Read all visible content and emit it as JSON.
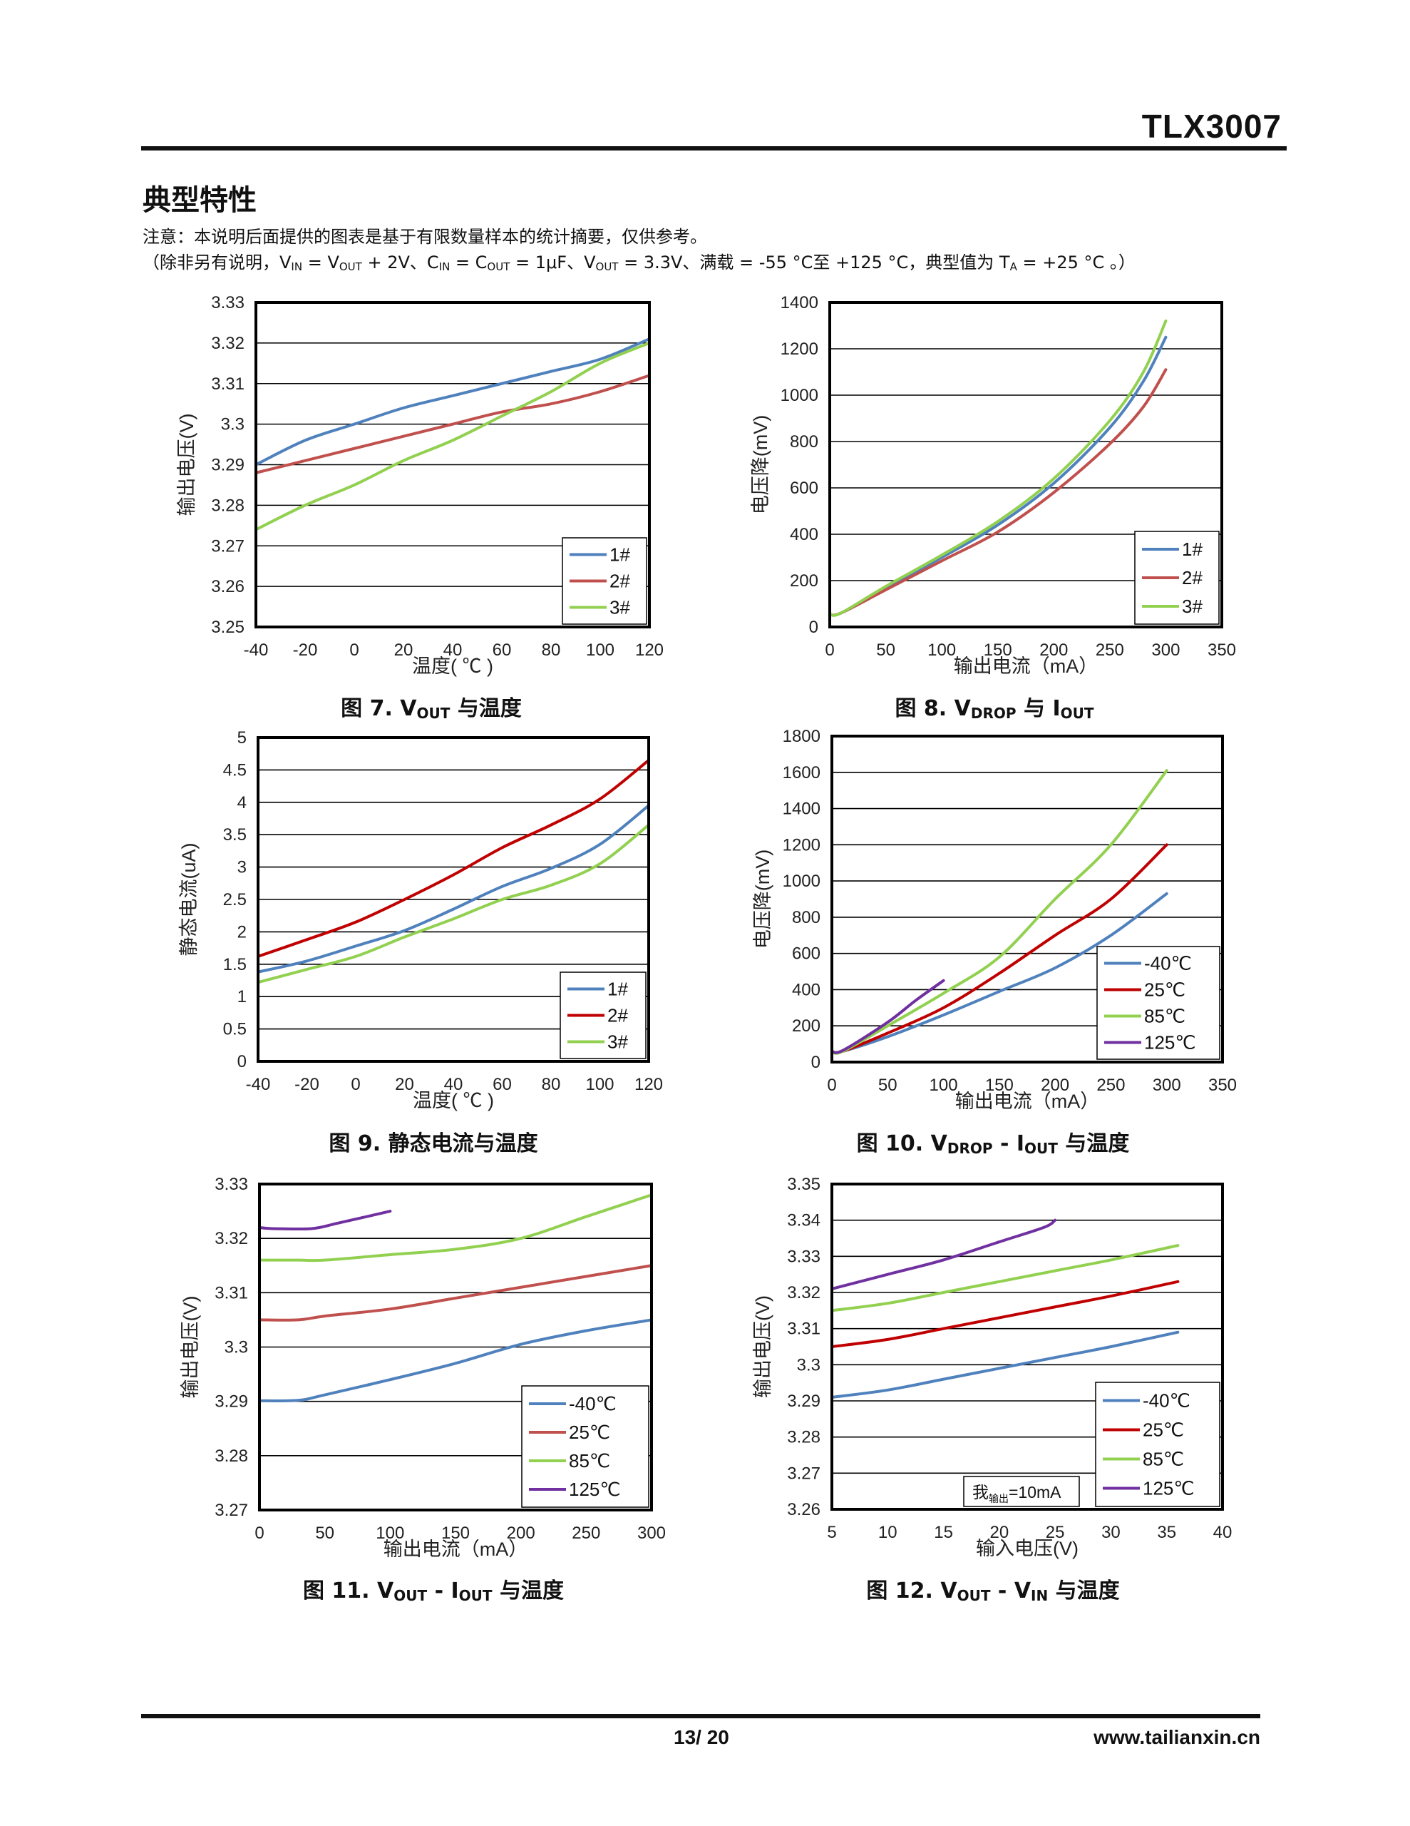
{
  "header": {
    "doc_title": "TLX3007"
  },
  "section": {
    "title": "典型特性",
    "note1": "注意：本说明后面提供的图表是基于有限数量样本的统计摘要，仅供参考。",
    "note2": {
      "p1": "（除非另有说明，V",
      "s1": "IN",
      "p2": " = V",
      "s2": "OUT",
      "p3": " + 2V、C",
      "s3": "IN",
      "p4": " = C",
      "s4": "OUT",
      "p5": " = 1μF、V",
      "s5": "OUT",
      "p6": " = 3.3V、满载 = -55 °C至 +125 °C，典型值为 T",
      "s6": "A",
      "p7": " = +25 °C 。）"
    }
  },
  "captions": {
    "fig7": {
      "pre": "图 7. V",
      "sub": "OUT",
      "post": " 与温度"
    },
    "fig8": {
      "pre": "图 8. V",
      "sub": "DROP",
      "mid": " 与 I",
      "sub2": "OUT",
      "post": ""
    },
    "fig9": {
      "pre": "图 9. 静态电流与温度"
    },
    "fig10": {
      "pre": "图 10. V",
      "sub": "DROP",
      "mid": " - I",
      "sub2": "OUT",
      "post": " 与温度"
    },
    "fig11": {
      "pre": "图 11. V",
      "sub": "OUT",
      "mid": " - I",
      "sub2": "OUT",
      "post": " 与温度"
    },
    "fig12": {
      "pre": "图 12. V",
      "sub": "OUT",
      "mid": " - V",
      "sub2": "IN",
      "post": " 与温度"
    }
  },
  "footer": {
    "page": "13/ 20",
    "website": "www.tailianxin.cn"
  },
  "colors": {
    "blue": "#4f81bd",
    "red": "#c0504d",
    "darkred": "#c00000",
    "green": "#92d050",
    "purple": "#7030a0"
  },
  "chart_data": [
    {
      "id": "fig7",
      "type": "line",
      "xlabel": "温度( ℃ )",
      "ylabel": "输出电压(V)",
      "xlim": [
        -40,
        120
      ],
      "ylim": [
        3.25,
        3.33
      ],
      "xticks": [
        "-40",
        "-20",
        "0",
        "20",
        "40",
        "60",
        "80",
        "100",
        "120"
      ],
      "yticks": [
        "3.25",
        "3.26",
        "3.27",
        "3.28",
        "3.29",
        "3.3",
        "3.31",
        "3.32",
        "3.33"
      ],
      "grid": true,
      "legend_position": "bottom-right",
      "series": [
        {
          "name": "1#",
          "color": "#4f81bd",
          "points": [
            [
              -40,
              3.29
            ],
            [
              -20,
              3.296
            ],
            [
              0,
              3.3
            ],
            [
              20,
              3.304
            ],
            [
              40,
              3.307
            ],
            [
              60,
              3.31
            ],
            [
              80,
              3.313
            ],
            [
              100,
              3.316
            ],
            [
              120,
              3.321
            ]
          ]
        },
        {
          "name": "2#",
          "color": "#c0504d",
          "points": [
            [
              -40,
              3.288
            ],
            [
              -20,
              3.291
            ],
            [
              0,
              3.294
            ],
            [
              20,
              3.297
            ],
            [
              40,
              3.3
            ],
            [
              60,
              3.303
            ],
            [
              80,
              3.305
            ],
            [
              100,
              3.308
            ],
            [
              120,
              3.312
            ]
          ]
        },
        {
          "name": "3#",
          "color": "#92d050",
          "points": [
            [
              -40,
              3.274
            ],
            [
              -20,
              3.28
            ],
            [
              0,
              3.285
            ],
            [
              20,
              3.291
            ],
            [
              40,
              3.296
            ],
            [
              60,
              3.302
            ],
            [
              80,
              3.308
            ],
            [
              100,
              3.315
            ],
            [
              120,
              3.32
            ]
          ]
        }
      ]
    },
    {
      "id": "fig8",
      "type": "line",
      "xlabel": "输出电流（mA）",
      "ylabel": "电压降(mV)",
      "xlim": [
        0,
        350
      ],
      "ylim": [
        0,
        1400
      ],
      "xticks": [
        "0",
        "50",
        "100",
        "150",
        "200",
        "250",
        "300",
        "350"
      ],
      "yticks": [
        "0",
        "200",
        "400",
        "600",
        "800",
        "1000",
        "1200",
        "1400"
      ],
      "grid": true,
      "legend_position": "bottom-right",
      "series": [
        {
          "name": "1#",
          "color": "#4f81bd",
          "points": [
            [
              0,
              55
            ],
            [
              10,
              60
            ],
            [
              50,
              170
            ],
            [
              100,
              300
            ],
            [
              150,
              440
            ],
            [
              200,
              620
            ],
            [
              250,
              860
            ],
            [
              280,
              1060
            ],
            [
              300,
              1250
            ]
          ]
        },
        {
          "name": "2#",
          "color": "#c0504d",
          "points": [
            [
              0,
              55
            ],
            [
              10,
              60
            ],
            [
              50,
              160
            ],
            [
              100,
              285
            ],
            [
              150,
              410
            ],
            [
              200,
              580
            ],
            [
              250,
              790
            ],
            [
              280,
              950
            ],
            [
              300,
              1110
            ]
          ]
        },
        {
          "name": "3#",
          "color": "#92d050",
          "points": [
            [
              0,
              55
            ],
            [
              10,
              60
            ],
            [
              50,
              175
            ],
            [
              100,
              310
            ],
            [
              150,
              455
            ],
            [
              200,
              640
            ],
            [
              250,
              890
            ],
            [
              280,
              1100
            ],
            [
              300,
              1320
            ]
          ]
        }
      ]
    },
    {
      "id": "fig9",
      "type": "line",
      "xlabel": "温度( ℃ )",
      "ylabel": "静态电流(uA)",
      "xlim": [
        -40,
        120
      ],
      "ylim": [
        0,
        5
      ],
      "xticks": [
        "-40",
        "-20",
        "0",
        "20",
        "40",
        "60",
        "80",
        "100",
        "120"
      ],
      "yticks": [
        "0",
        "0.5",
        "1",
        "1.5",
        "2",
        "2.5",
        "3",
        "3.5",
        "4",
        "4.5",
        "5"
      ],
      "grid": true,
      "legend_position": "bottom-right",
      "series": [
        {
          "name": "1#",
          "color": "#4f81bd",
          "points": [
            [
              -40,
              1.38
            ],
            [
              -20,
              1.55
            ],
            [
              0,
              1.78
            ],
            [
              20,
              2.02
            ],
            [
              40,
              2.35
            ],
            [
              60,
              2.7
            ],
            [
              80,
              2.98
            ],
            [
              100,
              3.35
            ],
            [
              120,
              3.95
            ]
          ]
        },
        {
          "name": "2#",
          "color": "#c00000",
          "points": [
            [
              -40,
              1.62
            ],
            [
              -20,
              1.88
            ],
            [
              0,
              2.15
            ],
            [
              20,
              2.5
            ],
            [
              40,
              2.88
            ],
            [
              60,
              3.3
            ],
            [
              80,
              3.65
            ],
            [
              100,
              4.05
            ],
            [
              120,
              4.65
            ]
          ]
        },
        {
          "name": "3#",
          "color": "#92d050",
          "points": [
            [
              -40,
              1.22
            ],
            [
              -20,
              1.42
            ],
            [
              0,
              1.62
            ],
            [
              20,
              1.92
            ],
            [
              40,
              2.2
            ],
            [
              60,
              2.5
            ],
            [
              80,
              2.72
            ],
            [
              100,
              3.05
            ],
            [
              120,
              3.65
            ]
          ]
        }
      ]
    },
    {
      "id": "fig10",
      "type": "line",
      "xlabel": "输出电流（mA）",
      "ylabel": "电压降(mV)",
      "xlim": [
        0,
        350
      ],
      "ylim": [
        0,
        1800
      ],
      "xticks": [
        "0",
        "50",
        "100",
        "150",
        "200",
        "250",
        "300",
        "350"
      ],
      "yticks": [
        "0",
        "200",
        "400",
        "600",
        "800",
        "1000",
        "1200",
        "1400",
        "1600",
        "1800"
      ],
      "grid": true,
      "legend_position": "bottom-right",
      "series": [
        {
          "name": "-40℃",
          "color": "#4f81bd",
          "points": [
            [
              0,
              55
            ],
            [
              10,
              60
            ],
            [
              50,
              140
            ],
            [
              100,
              260
            ],
            [
              150,
              390
            ],
            [
              200,
              520
            ],
            [
              250,
              700
            ],
            [
              300,
              930
            ]
          ]
        },
        {
          "name": "25℃",
          "color": "#c00000",
          "points": [
            [
              0,
              55
            ],
            [
              10,
              60
            ],
            [
              50,
              160
            ],
            [
              100,
              300
            ],
            [
              150,
              490
            ],
            [
              200,
              700
            ],
            [
              250,
              900
            ],
            [
              300,
              1200
            ]
          ]
        },
        {
          "name": "85℃",
          "color": "#92d050",
          "points": [
            [
              0,
              55
            ],
            [
              10,
              60
            ],
            [
              50,
              200
            ],
            [
              100,
              380
            ],
            [
              150,
              580
            ],
            [
              200,
              900
            ],
            [
              250,
              1200
            ],
            [
              300,
              1610
            ]
          ]
        },
        {
          "name": "125℃",
          "color": "#7030a0",
          "points": [
            [
              0,
              60
            ],
            [
              10,
              65
            ],
            [
              50,
              220
            ],
            [
              75,
              340
            ],
            [
              100,
              450
            ]
          ]
        }
      ]
    },
    {
      "id": "fig11",
      "type": "line",
      "xlabel": "输出电流（mA）",
      "ylabel": "输出电压(V)",
      "xlim": [
        0,
        300
      ],
      "ylim": [
        3.27,
        3.33
      ],
      "xticks": [
        "0",
        "50",
        "100",
        "150",
        "200",
        "250",
        "300"
      ],
      "yticks": [
        "3.27",
        "3.28",
        "3.29",
        "3.3",
        "3.31",
        "3.32",
        "3.33"
      ],
      "grid": true,
      "legend_position": "bottom-right",
      "series": [
        {
          "name": "-40℃",
          "color": "#4f81bd",
          "points": [
            [
              0,
              3.2901
            ],
            [
              30,
              3.2902
            ],
            [
              50,
              3.2912
            ],
            [
              100,
              3.294
            ],
            [
              150,
              3.297
            ],
            [
              200,
              3.3005
            ],
            [
              250,
              3.303
            ],
            [
              300,
              3.305
            ]
          ]
        },
        {
          "name": "25℃",
          "color": "#c0504d",
          "points": [
            [
              0,
              3.305
            ],
            [
              30,
              3.305
            ],
            [
              50,
              3.3057
            ],
            [
              100,
              3.307
            ],
            [
              150,
              3.309
            ],
            [
              200,
              3.311
            ],
            [
              250,
              3.313
            ],
            [
              300,
              3.315
            ]
          ]
        },
        {
          "name": "85℃",
          "color": "#92d050",
          "points": [
            [
              0,
              3.316
            ],
            [
              30,
              3.316
            ],
            [
              50,
              3.316
            ],
            [
              100,
              3.317
            ],
            [
              150,
              3.318
            ],
            [
              200,
              3.32
            ],
            [
              250,
              3.324
            ],
            [
              300,
              3.328
            ]
          ]
        },
        {
          "name": "125℃",
          "color": "#7030a0",
          "points": [
            [
              0,
              3.322
            ],
            [
              10,
              3.3218
            ],
            [
              40,
              3.3218
            ],
            [
              60,
              3.3228
            ],
            [
              100,
              3.325
            ]
          ]
        }
      ]
    },
    {
      "id": "fig12",
      "type": "line",
      "xlabel": "输入电压(V)",
      "ylabel": "输出电压(V)",
      "xlim": [
        5,
        40
      ],
      "ylim": [
        3.26,
        3.35
      ],
      "xticks": [
        "5",
        "10",
        "15",
        "20",
        "25",
        "30",
        "35",
        "40"
      ],
      "yticks": [
        "3.26",
        "3.27",
        "3.28",
        "3.29",
        "3.3",
        "3.31",
        "3.32",
        "3.33",
        "3.34",
        "3.35"
      ],
      "grid": true,
      "legend_position": "bottom-right",
      "annotation": {
        "pre": "我",
        "sub": "输出",
        "post": "=10mA"
      },
      "series": [
        {
          "name": "-40℃",
          "color": "#4f81bd",
          "points": [
            [
              5,
              3.291
            ],
            [
              10,
              3.293
            ],
            [
              15,
              3.296
            ],
            [
              20,
              3.299
            ],
            [
              25,
              3.302
            ],
            [
              30,
              3.305
            ],
            [
              36,
              3.309
            ]
          ]
        },
        {
          "name": "25℃",
          "color": "#c00000",
          "points": [
            [
              5,
              3.305
            ],
            [
              10,
              3.307
            ],
            [
              15,
              3.31
            ],
            [
              20,
              3.313
            ],
            [
              25,
              3.316
            ],
            [
              30,
              3.319
            ],
            [
              36,
              3.323
            ]
          ]
        },
        {
          "name": "85℃",
          "color": "#92d050",
          "points": [
            [
              5,
              3.315
            ],
            [
              10,
              3.317
            ],
            [
              15,
              3.32
            ],
            [
              20,
              3.323
            ],
            [
              25,
              3.326
            ],
            [
              30,
              3.329
            ],
            [
              36,
              3.333
            ]
          ]
        },
        {
          "name": "125℃",
          "color": "#7030a0",
          "points": [
            [
              5,
              3.321
            ],
            [
              10,
              3.325
            ],
            [
              15,
              3.329
            ],
            [
              20,
              3.334
            ],
            [
              24,
              3.338
            ],
            [
              25,
              3.34
            ]
          ]
        }
      ]
    }
  ]
}
